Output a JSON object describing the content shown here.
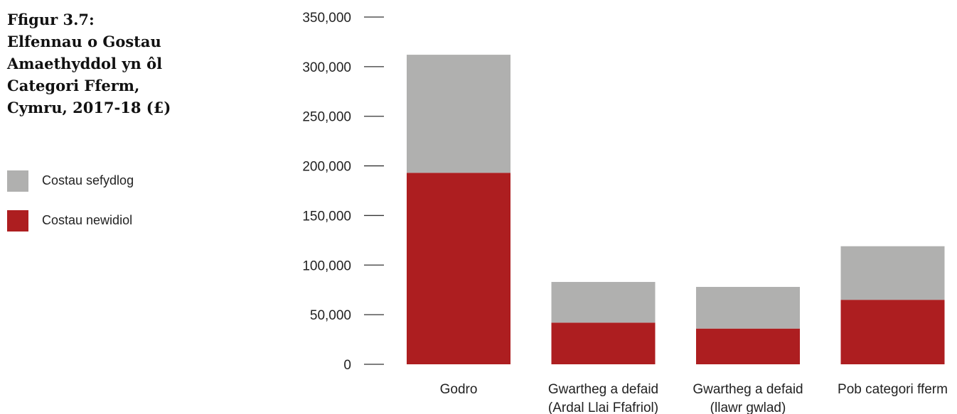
{
  "title": {
    "lines": [
      "Ffigur 3.7:",
      "Elfennau o Gostau",
      "Amaethyddol yn ôl",
      "Categori Fferm,",
      "Cymru, 2017-18 (£)"
    ]
  },
  "legend": {
    "items": [
      {
        "label": "Costau sefydlog",
        "color": "#b0b0af"
      },
      {
        "label": "Costau newidiol",
        "color": "#ad1e20"
      }
    ]
  },
  "chart_data": {
    "type": "bar",
    "stacked": true,
    "categories": [
      [
        "Godro"
      ],
      [
        "Gwartheg a defaid",
        "(Ardal Llai Ffafriol)"
      ],
      [
        "Gwartheg a defaid",
        "(llawr gwlad)"
      ],
      [
        "Pob categori fferm"
      ]
    ],
    "series": [
      {
        "name": "Costau newidiol",
        "color": "#ad1e20",
        "values": [
          193000,
          42000,
          36000,
          65000
        ]
      },
      {
        "name": "Costau sefydlog",
        "color": "#b0b0af",
        "values": [
          119000,
          41000,
          42000,
          54000
        ]
      }
    ],
    "ylim": [
      0,
      350000
    ],
    "yticks": [
      "0",
      "50,000",
      "100,000",
      "150,000",
      "200,000",
      "250,000",
      "300,000",
      "350,000"
    ],
    "ytick_values": [
      0,
      50000,
      100000,
      150000,
      200000,
      250000,
      300000,
      350000
    ],
    "xlabel": "",
    "ylabel": "",
    "grid": false
  }
}
